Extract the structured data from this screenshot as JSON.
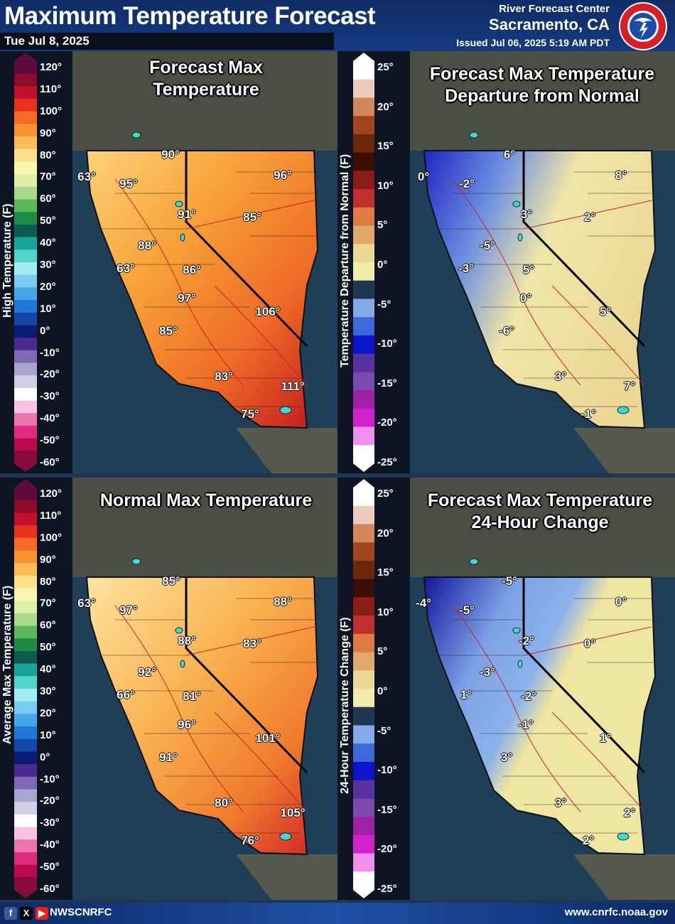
{
  "header": {
    "title": "Maximum Temperature Forecast",
    "date": "Tue Jul 8, 2025",
    "office": "River Forecast Center",
    "location": "Sacramento, CA",
    "issued": "Issued Jul 06, 2025 5:19 AM PDT"
  },
  "scales": {
    "temperature": {
      "labels": [
        "120°",
        "110°",
        "100°",
        "90°",
        "80°",
        "70°",
        "60°",
        "50°",
        "40°",
        "30°",
        "20°",
        "10°",
        "0°",
        "-10°",
        "-20°",
        "-30°",
        "-40°",
        "-50°",
        "-60°"
      ],
      "colors": [
        "#5c0a3c",
        "#8e0a2a",
        "#c0102a",
        "#e8321e",
        "#f56a28",
        "#f99530",
        "#fbbc58",
        "#fde08e",
        "#f8f6b0",
        "#dcefa4",
        "#a9d88a",
        "#5ab85a",
        "#1e8c44",
        "#0f5c4e",
        "#15a39a",
        "#52d4c8",
        "#a0ecee",
        "#7ccaf4",
        "#46a6ea",
        "#2078d6",
        "#1448a8",
        "#0a1c74",
        "#4a2a8e",
        "#7e68b4",
        "#a8a4d0",
        "#cfd0e8",
        "#ffffff",
        "#fac2e2",
        "#ea74ac",
        "#e02a80",
        "#b80a4c",
        "#880c3a"
      ],
      "panels": [
        "High Temperature (F)",
        "Average Max Temperature (F)"
      ]
    },
    "departure": {
      "labels": [
        "25°",
        "20°",
        "15°",
        "10°",
        "5°",
        "0°",
        "-5°",
        "-10°",
        "-15°",
        "-20°",
        "-25°"
      ],
      "colors": [
        "#ffffff",
        "#eccabc",
        "#d2865a",
        "#a0451c",
        "#6c2608",
        "#3a1004",
        "#8c1c18",
        "#c0302c",
        "#e07c42",
        "#e0a86a",
        "#ecd896",
        "#f2ecac",
        "#1f3550",
        "#84aaea",
        "#3c68d8",
        "#0a14c8",
        "#5830a0",
        "#7a4ab0",
        "#a020a8",
        "#d020d0",
        "#f090ec",
        "#ffffff"
      ],
      "panels": [
        "Temperature Departure from Normal (F)",
        "24-Hour Temperature Change (F)"
      ]
    }
  },
  "panels": {
    "forecast": {
      "title": [
        "Forecast Max",
        "Temperature"
      ],
      "labels": [
        "63°",
        "90°",
        "95°",
        "96°",
        "91°",
        "85°",
        "88°",
        "63°",
        "86°",
        "97°",
        "106°",
        "85°",
        "83°",
        "111°",
        "75°"
      ]
    },
    "departure": {
      "title": [
        "Forecast Max Temperature",
        "Departure from Normal"
      ],
      "labels": [
        "6°",
        "0°",
        "-2°",
        "8°",
        "3°",
        "2°",
        "-5°",
        "-3°",
        "5°",
        "0°",
        "5°",
        "-6°",
        "3°",
        "7°",
        "-1°"
      ]
    },
    "normal": {
      "title": [
        "Normal Max Temperature"
      ],
      "labels": [
        "85°",
        "63°",
        "97°",
        "88°",
        "88°",
        "83°",
        "92°",
        "66°",
        "81°",
        "96°",
        "101°",
        "91°",
        "80°",
        "105°",
        "76°"
      ]
    },
    "change": {
      "title": [
        "Forecast Max Temperature",
        "24-Hour Change"
      ],
      "labels": [
        "-5°",
        "-4°",
        "-5°",
        "0°",
        "-2°",
        "0°",
        "-3°",
        "1°",
        "-2°",
        "-1°",
        "1°",
        "3°",
        "3°",
        "2°",
        "2°"
      ]
    }
  },
  "footer": {
    "social_icons": [
      "facebook-icon",
      "x-icon",
      "youtube-icon"
    ],
    "handle": "NWSCNRFC",
    "website": "www.cnrfc.noaa.gov"
  }
}
